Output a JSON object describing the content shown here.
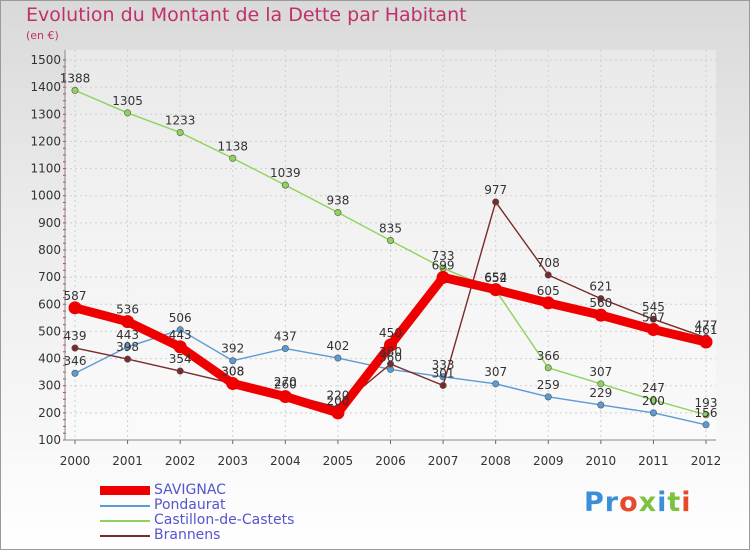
{
  "title": "Evolution du Montant de la Dette par Habitant",
  "unit": "(en €)",
  "brand": "Proxiti",
  "brand_colors": [
    "#3b8fd9",
    "#3b8fd9",
    "#e8482c",
    "#7cc241",
    "#3b8fd9",
    "#7cc241",
    "#e8482c"
  ],
  "chart_data": {
    "type": "line",
    "x": [
      "2000",
      "2001",
      "2002",
      "2003",
      "2004",
      "2005",
      "2006",
      "2007",
      "2008",
      "2009",
      "2010",
      "2011",
      "2012"
    ],
    "ylim": [
      100,
      1500
    ],
    "yticks": [
      100,
      200,
      300,
      400,
      500,
      600,
      700,
      800,
      900,
      1000,
      1100,
      1200,
      1300,
      1400,
      1500
    ],
    "grid": true,
    "legend": "bottom-left",
    "series": [
      {
        "name": "SAVIGNAC",
        "color": "#ee0000",
        "values": [
          587,
          536,
          443,
          308,
          260,
          200,
          450,
          699,
          654,
          605,
          560,
          507,
          461
        ]
      },
      {
        "name": "Pondaurat",
        "color": "#5b9bd5",
        "values": [
          346,
          443,
          506,
          392,
          437,
          402,
          360,
          333,
          307,
          259,
          229,
          200,
          156
        ]
      },
      {
        "name": "Castillon-de-Castets",
        "color": "#8fd35a",
        "values": [
          1388,
          1305,
          1233,
          1138,
          1039,
          938,
          835,
          733,
          652,
          366,
          307,
          247,
          193
        ]
      },
      {
        "name": "Brannens",
        "color": "#7a2a2a",
        "values": [
          439,
          398,
          354,
          308,
          270,
          220,
          380,
          301,
          977,
          708,
          621,
          545,
          477
        ]
      }
    ]
  }
}
